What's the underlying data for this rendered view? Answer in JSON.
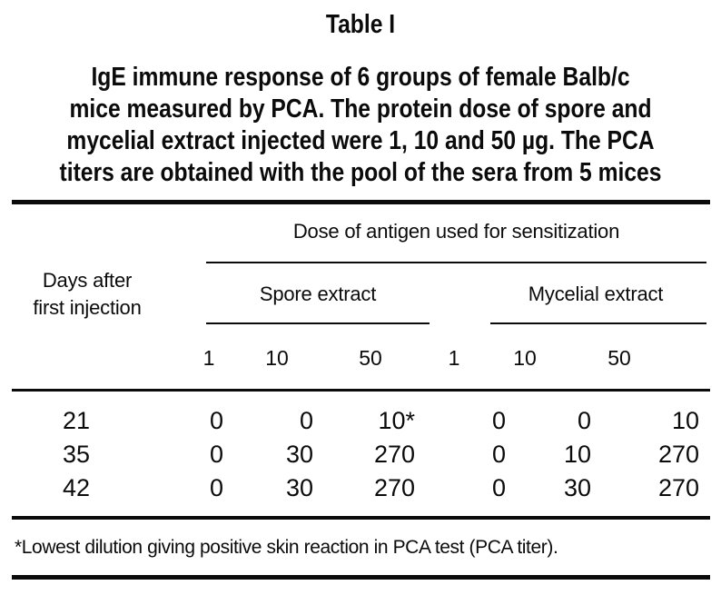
{
  "page": {
    "table_label": "Table I",
    "caption_lines": [
      "IgE immune response of 6 groups of female Balb/c",
      "mice measured by PCA. The protein dose of spore and",
      "mycelial extract injected were 1, 10 and 50 µg. The PCA",
      "titers are obtained with the pool of the sera from 5 mices"
    ]
  },
  "table": {
    "col_group_title": "Dose of antigen used for sensitization",
    "row_header": {
      "line1": "Days after",
      "line2": "first injection"
    },
    "groups": [
      {
        "label": "Spore extract",
        "doses": [
          "1",
          "10",
          "50"
        ]
      },
      {
        "label": "Mycelial extract",
        "doses": [
          "1",
          "10",
          "50"
        ]
      }
    ],
    "rows": [
      {
        "day": "21",
        "values": [
          "0",
          "0",
          "10*",
          "0",
          "0",
          "10"
        ]
      },
      {
        "day": "35",
        "values": [
          "0",
          "30",
          "270",
          "0",
          "10",
          "270"
        ]
      },
      {
        "day": "42",
        "values": [
          "0",
          "30",
          "270",
          "0",
          "30",
          "270"
        ]
      }
    ],
    "footnote": "*Lowest dilution giving positive skin reaction in PCA test (PCA titer)."
  },
  "colors": {
    "ink": "#0b0b0b",
    "paper": "#ffffff"
  }
}
